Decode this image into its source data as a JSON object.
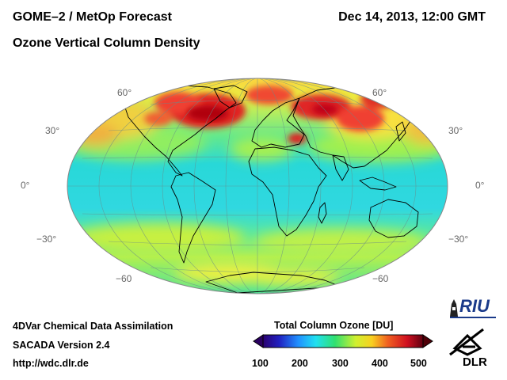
{
  "header": {
    "title": "GOME–2 / MetOp Forecast",
    "subtitle": "Ozone Vertical Column Density",
    "datetime": "Dec 14, 2013, 12:00 GMT"
  },
  "map": {
    "projection": "Hammer-Aitoff",
    "lat_labels_left": [
      "60°",
      "30°",
      "0°",
      "−30°",
      "−60"
    ],
    "lat_labels_right": [
      "60°",
      "30°",
      "0°",
      "−30°",
      "−60"
    ]
  },
  "footer": {
    "line1": "4DVar Chemical Data Assimilation",
    "line2": "SACADA Version 2.4",
    "url": "http://wdc.dlr.de"
  },
  "colorbar": {
    "title": "Total Column Ozone [DU]",
    "ticks": [
      "100",
      "200",
      "300",
      "400",
      "500"
    ],
    "colors": [
      "#1a0055",
      "#3050ff",
      "#20d8f8",
      "#40e860",
      "#f8f030",
      "#f06020",
      "#c00010",
      "#550008"
    ]
  },
  "logos": {
    "riu": "RIU",
    "dlr": "DLR"
  }
}
